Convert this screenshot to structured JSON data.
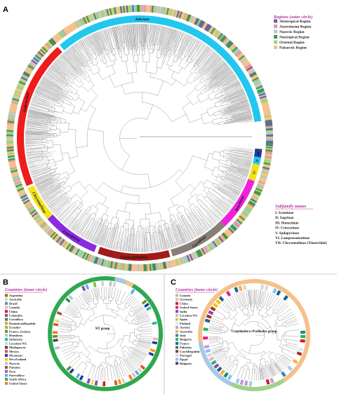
{
  "panels": {
    "a": {
      "letter": "A",
      "regions_title": "Regions (outer circle)",
      "regions": [
        {
          "label": "Afrotropical Region",
          "color": "#6f5fa6"
        },
        {
          "label": "Australasian Region",
          "color": "#e59a9a"
        },
        {
          "label": "Nearctic Region",
          "color": "#a7c9e9"
        },
        {
          "label": "Neotropical Region",
          "color": "#3f9a42"
        },
        {
          "label": "Oriental Region",
          "color": "#9fd28a"
        },
        {
          "label": "Palearctic Region",
          "color": "#f2c38a"
        }
      ],
      "subfamily_title": "Subfamily names",
      "subfamilies": [
        "I. Synetinae",
        "II. Sagrinae",
        "III. Donaciinae",
        "IV. Criocerinae",
        "V. Spilopyrinae",
        "VI. Lamprosomatinae",
        "VII. Chrysomelinae (Timarchini)"
      ],
      "clades": [
        {
          "label": "Alticinae",
          "color": "#22c7ee"
        },
        {
          "label": "Galerucinae",
          "color": "#ee1c1c"
        },
        {
          "label": "Chrysomelinae",
          "color": "#f2e21a"
        },
        {
          "label": "Eumolpinae",
          "color": "#8a2be2"
        },
        {
          "label": "Cryptocephalinae",
          "color": "#a31a1a"
        },
        {
          "label": "Cassidinae",
          "color": "#8a7f78"
        },
        {
          "label": "Bruchinae",
          "color": "#ee22dd"
        },
        {
          "label": "IV",
          "color": "#f2e21a"
        },
        {
          "label": "III",
          "color": "#1a3fa8"
        },
        {
          "label": "II",
          "color": "#22c7ee"
        },
        {
          "label": "I",
          "color": "#333333"
        }
      ]
    },
    "b": {
      "letter": "B",
      "countries_title": "Countries (inner circle)",
      "countries": [
        {
          "label": "Argentina",
          "color": "#8c6a2a"
        },
        {
          "label": "Australia",
          "color": "#e0e070"
        },
        {
          "label": "Brazil",
          "color": "#4a8fd8"
        },
        {
          "label": "Canada",
          "color": "#e8b4c8"
        },
        {
          "label": "China",
          "color": "#cc2222"
        },
        {
          "label": "Colombia",
          "color": "#8e44ad"
        },
        {
          "label": "CostaRica",
          "color": "#2e8b57"
        },
        {
          "label": "DominicanRepublic",
          "color": "#f39c12"
        },
        {
          "label": "Ecuador",
          "color": "#7fbf3f"
        },
        {
          "label": "France_Guiana",
          "color": "#6b8e23"
        },
        {
          "label": "Honduras",
          "color": "#c0c0c0"
        },
        {
          "label": "Indonesia",
          "color": "#1abc9c"
        },
        {
          "label": "Location-NA",
          "color": "#d3d3d3"
        },
        {
          "label": "Madagascar",
          "color": "#34495e"
        },
        {
          "label": "Mexico",
          "color": "#e74c3c"
        },
        {
          "label": "Myanmar",
          "color": "#1f3a93"
        },
        {
          "label": "NewZealand",
          "color": "#f1c40f"
        },
        {
          "label": "Norway",
          "color": "#bdc3c7"
        },
        {
          "label": "Panama",
          "color": "#a0522d"
        },
        {
          "label": "Peru",
          "color": "#9b59b6"
        },
        {
          "label": "PuertoRico",
          "color": "#5dade2"
        },
        {
          "label": "South Africa",
          "color": "#27ae60"
        },
        {
          "label": "United States",
          "color": "#e67e22"
        }
      ],
      "group_label": "NT group",
      "ring_color": "#2fa84f"
    },
    "c": {
      "letter": "C",
      "countries_title": "Countries (inner circle)",
      "countries": [
        {
          "label": "Canada",
          "color": "#9fd28a"
        },
        {
          "label": "Germany",
          "color": "#e8b4c8"
        },
        {
          "label": "China",
          "color": "#cc2222"
        },
        {
          "label": "United States",
          "color": "#e0208a"
        },
        {
          "label": "India",
          "color": "#8e44ad"
        },
        {
          "label": "Location-NA",
          "color": "#a7c9e9"
        },
        {
          "label": "Spain",
          "color": "#f1c40f"
        },
        {
          "label": "Finland",
          "color": "#d8e8f8"
        },
        {
          "label": "Austria",
          "color": "#c39bd3"
        },
        {
          "label": "Australia",
          "color": "#f5b041"
        },
        {
          "label": "Italy",
          "color": "#2e86c1"
        },
        {
          "label": "Bulgaria",
          "color": "#28b463"
        },
        {
          "label": "France",
          "color": "#1f618d"
        },
        {
          "label": "Pakistan",
          "color": "#148f77"
        },
        {
          "label": "CzechRepublic",
          "color": "#a93226"
        },
        {
          "label": "Portugal",
          "color": "#d5dbdb"
        },
        {
          "label": "Egypt",
          "color": "#85c1e9"
        },
        {
          "label": "Bulgaria",
          "color": "#6c3483"
        }
      ],
      "group_label": "Crepidodera+Psylliodes group",
      "ring_color": "#f5c08a"
    }
  }
}
